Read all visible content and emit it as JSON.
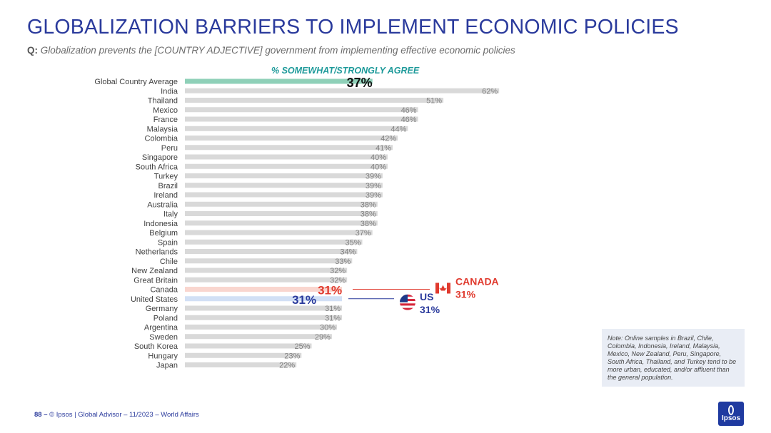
{
  "title": "GLOBALIZATION BARRIERS TO IMPLEMENT ECONOMIC POLICIES",
  "question": {
    "prefix": "Q:",
    "text": "Globalization prevents the [COUNTRY ADJECTIVE] government from implementing effective economic policies"
  },
  "chart_subtitle": "% SOMEWHAT/STRONGLY AGREE",
  "chart_data": {
    "type": "bar",
    "orientation": "horizontal",
    "categories": [
      "Global Country Average",
      "India",
      "Thailand",
      "Mexico",
      "France",
      "Malaysia",
      "Colombia",
      "Peru",
      "Singapore",
      "South Africa",
      "Turkey",
      "Brazil",
      "Ireland",
      "Australia",
      "Italy",
      "Indonesia",
      "Belgium",
      "Spain",
      "Netherlands",
      "Chile",
      "New Zealand",
      "Great Britain",
      "Canada",
      "United States",
      "Germany",
      "Poland",
      "Argentina",
      "Sweden",
      "South Korea",
      "Hungary",
      "Japan"
    ],
    "values": [
      37,
      62,
      51,
      46,
      46,
      44,
      42,
      41,
      40,
      40,
      39,
      39,
      39,
      38,
      38,
      38,
      37,
      35,
      34,
      33,
      32,
      32,
      31,
      31,
      31,
      31,
      30,
      29,
      25,
      23,
      22
    ],
    "value_labels": [
      "37%",
      "62%",
      "51%",
      "46%",
      "46%",
      "44%",
      "42%",
      "41%",
      "40%",
      "40%",
      "39%",
      "39%",
      "39%",
      "38%",
      "38%",
      "38%",
      "37%",
      "35%",
      "34%",
      "33%",
      "32%",
      "32%",
      "31%",
      "31%",
      "31%",
      "31%",
      "30%",
      "29%",
      "25%",
      "23%",
      "22%"
    ],
    "highlights": {
      "Global Country Average": "#8fd0b8",
      "Canada": "#f9d6cf",
      "United States": "#d2e0f5"
    },
    "default_bar_color": "#d9d9d9",
    "xlim": [
      0,
      100
    ]
  },
  "callouts": {
    "canada": {
      "name": "CANADA",
      "value": "31%",
      "color": "#e03a2e"
    },
    "us": {
      "name": "US",
      "value": "31%",
      "color": "#2a3a9c"
    }
  },
  "note": "Note: Online samples in Brazil, Chile, Colombia, Indonesia, Ireland, Malaysia, Mexico, New Zealand, Peru, Singapore, South Africa, Thailand, and Turkey tend to be more urban, educated, and/or affluent than the general population.",
  "footer": {
    "page": "88 –",
    "text": "© Ipsos | Global Advisor – 11/2023 – World Affairs"
  },
  "logo": "Ipsos"
}
